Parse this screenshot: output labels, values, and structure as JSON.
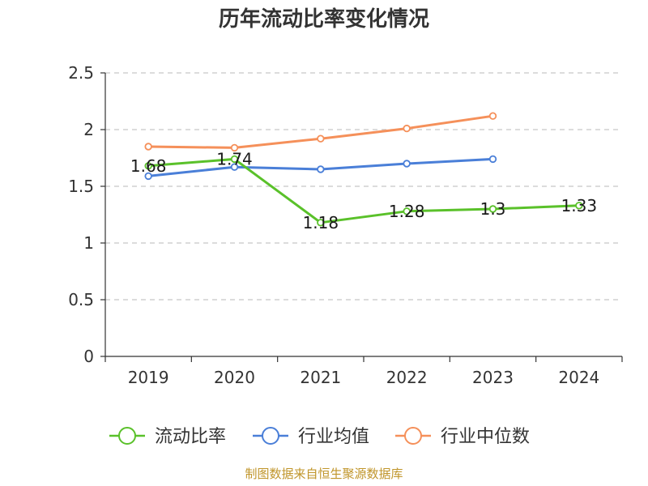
{
  "chart_data": {
    "type": "line",
    "title": "历年流动比率变化情况",
    "categories": [
      "2019",
      "2020",
      "2021",
      "2022",
      "2023",
      "2024"
    ],
    "ylim": [
      0,
      2.5
    ],
    "yticks": [
      "0",
      "0.5",
      "1",
      "1.5",
      "2",
      "2.5"
    ],
    "grid": true,
    "legend_position": "bottom",
    "series": [
      {
        "name": "流动比率",
        "color": "#5ac12a",
        "values": [
          1.68,
          1.74,
          1.18,
          1.28,
          1.3,
          1.33
        ],
        "labels": [
          "1.68",
          "1.74",
          "1.18",
          "1.28",
          "1.3",
          "1.33"
        ]
      },
      {
        "name": "行业均值",
        "color": "#4a7fd8",
        "values": [
          1.59,
          1.67,
          1.65,
          1.7,
          1.74,
          null
        ]
      },
      {
        "name": "行业中位数",
        "color": "#f5905a",
        "values": [
          1.85,
          1.84,
          1.92,
          2.01,
          2.12,
          null
        ]
      }
    ],
    "source": "制图数据来自恒生聚源数据库"
  }
}
